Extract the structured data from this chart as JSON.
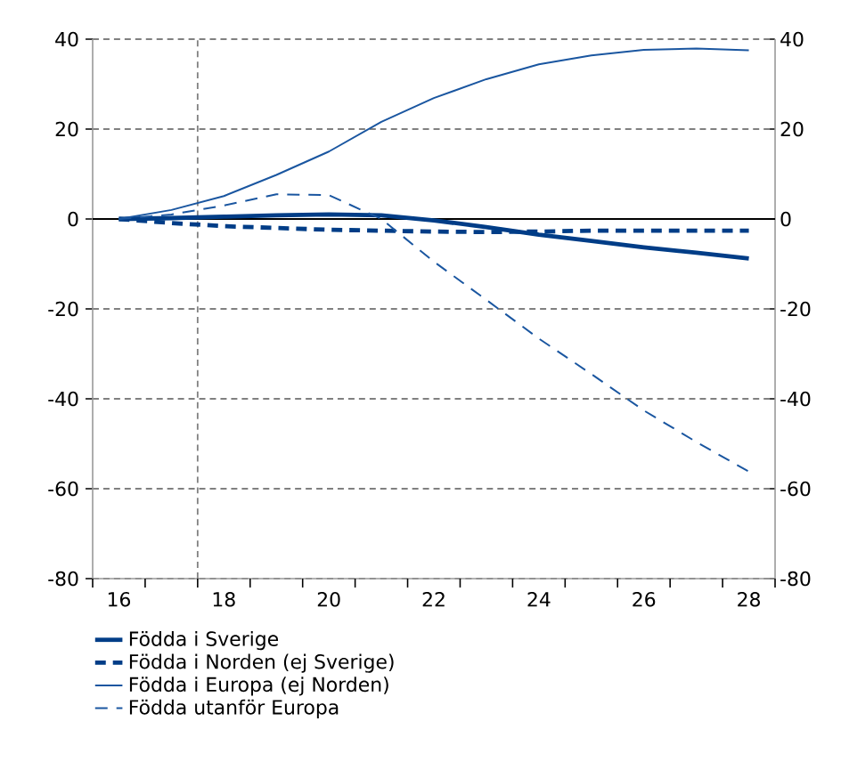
{
  "chart_data": {
    "type": "line",
    "x": [
      16,
      17,
      18,
      19,
      20,
      21,
      22,
      23,
      24,
      25,
      26,
      27,
      28
    ],
    "series": [
      {
        "name": "Födda i Sverige",
        "color": "#003d87",
        "line_style": "solid",
        "values": [
          0,
          0.2,
          0.5,
          0.8,
          1.0,
          0.8,
          -0.3,
          -1.8,
          -3.5,
          -4.9,
          -6.3,
          -7.5,
          -8.8
        ]
      },
      {
        "name": "Födda i Norden (ej Sverige)",
        "color": "#003d87",
        "line_style": "dashed",
        "values": [
          0,
          -0.9,
          -1.6,
          -2.0,
          -2.4,
          -2.6,
          -2.8,
          -2.9,
          -2.8,
          -2.6,
          -2.6,
          -2.6,
          -2.6
        ]
      },
      {
        "name": "Födda i Europa (ej Norden)",
        "color": "#1a56a0",
        "line_style": "solid",
        "values": [
          0,
          2,
          5.1,
          9.8,
          15,
          21.6,
          26.9,
          31.1,
          34.4,
          36.4,
          37.6,
          37.9,
          37.5
        ]
      },
      {
        "name": "Födda utanför Europa",
        "color": "#1a56a0",
        "line_style": "dashed",
        "values": [
          0,
          1,
          3,
          5.5,
          5.3,
          0,
          -9.5,
          -18,
          -26.6,
          -34.5,
          -42.6,
          -49.6,
          -56.2
        ]
      }
    ],
    "xlim": [
      15.5,
      28.5
    ],
    "xticks": [
      {
        "value": 15.5,
        "label": null
      },
      16,
      {
        "value": 16.5,
        "label": null
      },
      {
        "value": 17.5,
        "label": null
      },
      18,
      {
        "value": 18.5,
        "label": null
      },
      {
        "value": 19.5,
        "label": null
      },
      20,
      {
        "value": 20.5,
        "label": null
      },
      {
        "value": 21.5,
        "label": null
      },
      22,
      {
        "value": 22.5,
        "label": null
      },
      {
        "value": 23.5,
        "label": null
      },
      24,
      {
        "value": 24.5,
        "label": null
      },
      {
        "value": 25.5,
        "label": null
      },
      26,
      {
        "value": 26.5,
        "label": null
      },
      {
        "value": 27.5,
        "label": null
      },
      28,
      {
        "value": 28.5,
        "label": null
      }
    ],
    "ylim": [
      -80,
      40
    ],
    "yticks": [
      -80,
      -60,
      -40,
      -20,
      0,
      20,
      40
    ],
    "y2lim": [
      -80,
      40
    ],
    "y2ticks": [
      -80,
      -60,
      -40,
      -20,
      0,
      20,
      40
    ],
    "ref_lines": [
      {
        "axis": "y",
        "value": 0,
        "color": "#000000",
        "line_style": "solid"
      },
      {
        "axis": "x",
        "value": 17.5,
        "color": "#808080",
        "line_style": "dashed"
      }
    ],
    "grid": "y",
    "legend": "bottom"
  }
}
